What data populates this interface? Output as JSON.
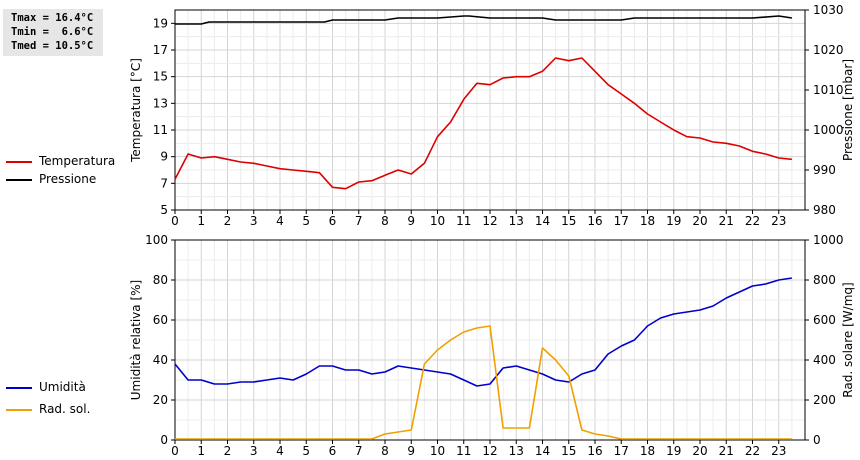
{
  "stats": {
    "tmax": "Tmax = 16.4°C",
    "tmin": "Tmin =  6.6°C",
    "tmed": "Tmed = 10.5°C"
  },
  "legend": {
    "temperatura": "Temperatura",
    "pressione": "Pressione",
    "umidita": "Umidità",
    "rad": "Rad. sol."
  },
  "colors": {
    "temperatura": "#dd0000",
    "pressione": "#000000",
    "umidita": "#0000cc",
    "rad": "#f0a000"
  },
  "chart_data": [
    {
      "type": "line",
      "xlabel": "",
      "ylabel": "Temperatura [°C]",
      "y2label": "Pressione [mbar]",
      "xlim": [
        0,
        24
      ],
      "xticks": [
        "0",
        "1",
        "2",
        "3",
        "4",
        "5",
        "6",
        "7",
        "8",
        "9",
        "10",
        "11",
        "12",
        "13",
        "14",
        "15",
        "16",
        "17",
        "18",
        "19",
        "20",
        "21",
        "22",
        "23"
      ],
      "ylim": [
        5,
        20
      ],
      "yticks": [
        "5",
        "7",
        "9",
        "11",
        "13",
        "15",
        "17",
        "19"
      ],
      "y2lim": [
        980,
        1030
      ],
      "y2ticks": [
        "980",
        "990",
        "1000",
        "1010",
        "1020",
        "1030"
      ],
      "grid": true,
      "series": [
        {
          "name": "Temperatura",
          "axis": "left",
          "color": "#dd0000",
          "x": [
            0,
            0.5,
            1,
            1.5,
            2,
            2.5,
            3,
            3.5,
            4,
            4.5,
            5,
            5.5,
            6,
            6.5,
            7,
            7.5,
            8,
            8.5,
            9,
            9.5,
            10,
            10.5,
            11,
            11.5,
            12,
            12.5,
            13,
            13.5,
            14,
            14.5,
            15,
            15.5,
            16,
            16.5,
            17,
            17.5,
            18,
            18.5,
            19,
            19.5,
            20,
            20.5,
            21,
            21.5,
            22,
            22.5,
            23,
            23.5
          ],
          "y": [
            7.3,
            9.2,
            8.9,
            9.0,
            8.8,
            8.6,
            8.5,
            8.3,
            8.1,
            8.0,
            7.9,
            7.8,
            6.7,
            6.6,
            7.1,
            7.2,
            7.6,
            8.0,
            7.7,
            8.5,
            10.5,
            11.6,
            13.3,
            14.5,
            14.4,
            14.9,
            15.0,
            15.0,
            15.4,
            16.4,
            16.2,
            16.4,
            15.4,
            14.4,
            13.7,
            13.0,
            12.2,
            11.6,
            11.0,
            10.5,
            10.4,
            10.1,
            10.0,
            9.8,
            9.4,
            9.2,
            8.9,
            8.8
          ]
        },
        {
          "name": "Pressione",
          "axis": "right",
          "color": "#000000",
          "x": [
            0,
            1,
            1.3,
            2,
            3,
            4,
            5,
            5.7,
            6,
            7,
            8,
            8.5,
            9,
            10,
            11,
            11.2,
            12,
            13,
            14,
            14.5,
            15,
            16,
            17,
            17.5,
            18,
            19,
            20,
            21,
            22,
            23,
            23.5
          ],
          "y": [
            1026.5,
            1026.5,
            1027,
            1027,
            1027,
            1027,
            1027,
            1027,
            1027.5,
            1027.5,
            1027.5,
            1028,
            1028,
            1028,
            1028.5,
            1028.5,
            1028,
            1028,
            1028,
            1027.5,
            1027.5,
            1027.5,
            1027.5,
            1028,
            1028,
            1028,
            1028,
            1028,
            1028,
            1028.5,
            1028
          ]
        }
      ]
    },
    {
      "type": "line",
      "xlabel": "",
      "ylabel": "Umidità relativa [%]",
      "y2label": "Rad. solare [W/mq]",
      "xlim": [
        0,
        24
      ],
      "xticks": [
        "0",
        "1",
        "2",
        "3",
        "4",
        "5",
        "6",
        "7",
        "8",
        "9",
        "10",
        "11",
        "12",
        "13",
        "14",
        "15",
        "16",
        "17",
        "18",
        "19",
        "20",
        "21",
        "22",
        "23"
      ],
      "ylim": [
        0,
        100
      ],
      "yticks": [
        "0",
        "20",
        "40",
        "60",
        "80",
        "100"
      ],
      "y2lim": [
        0,
        1000
      ],
      "y2ticks": [
        "0",
        "200",
        "400",
        "600",
        "800",
        "1000"
      ],
      "grid": true,
      "series": [
        {
          "name": "Umidità",
          "axis": "left",
          "color": "#0000cc",
          "x": [
            0,
            0.5,
            1,
            1.5,
            2,
            2.5,
            3,
            3.5,
            4,
            4.5,
            5,
            5.5,
            6,
            6.5,
            7,
            7.5,
            8,
            8.5,
            9,
            9.5,
            10,
            10.5,
            11,
            11.5,
            12,
            12.5,
            13,
            13.5,
            14,
            14.5,
            15,
            15.5,
            16,
            16.5,
            17,
            17.5,
            18,
            18.5,
            19,
            19.5,
            20,
            20.5,
            21,
            21.5,
            22,
            22.5,
            23,
            23.5
          ],
          "y": [
            38,
            30,
            30,
            28,
            28,
            29,
            29,
            30,
            31,
            30,
            33,
            37,
            37,
            35,
            35,
            33,
            34,
            37,
            36,
            35,
            34,
            33,
            30,
            27,
            28,
            36,
            37,
            35,
            33,
            30,
            29,
            33,
            35,
            43,
            47,
            50,
            57,
            61,
            63,
            64,
            65,
            67,
            71,
            74,
            77,
            78,
            80,
            81
          ]
        },
        {
          "name": "Rad. sol.",
          "axis": "right",
          "color": "#f0a000",
          "x": [
            0,
            1,
            2,
            3,
            4,
            5,
            6,
            7,
            7.5,
            8,
            8.5,
            9,
            9.5,
            10,
            10.5,
            11,
            11.5,
            12,
            12.5,
            13,
            13.5,
            14,
            14.5,
            15,
            15.5,
            16,
            16.5,
            17,
            18,
            19,
            20,
            21,
            22,
            23,
            23.5
          ],
          "y": [
            5,
            5,
            5,
            5,
            5,
            5,
            5,
            5,
            5,
            30,
            40,
            50,
            380,
            450,
            500,
            540,
            560,
            570,
            60,
            60,
            60,
            460,
            400,
            320,
            50,
            30,
            20,
            5,
            5,
            5,
            5,
            5,
            5,
            5,
            5
          ]
        }
      ]
    }
  ]
}
